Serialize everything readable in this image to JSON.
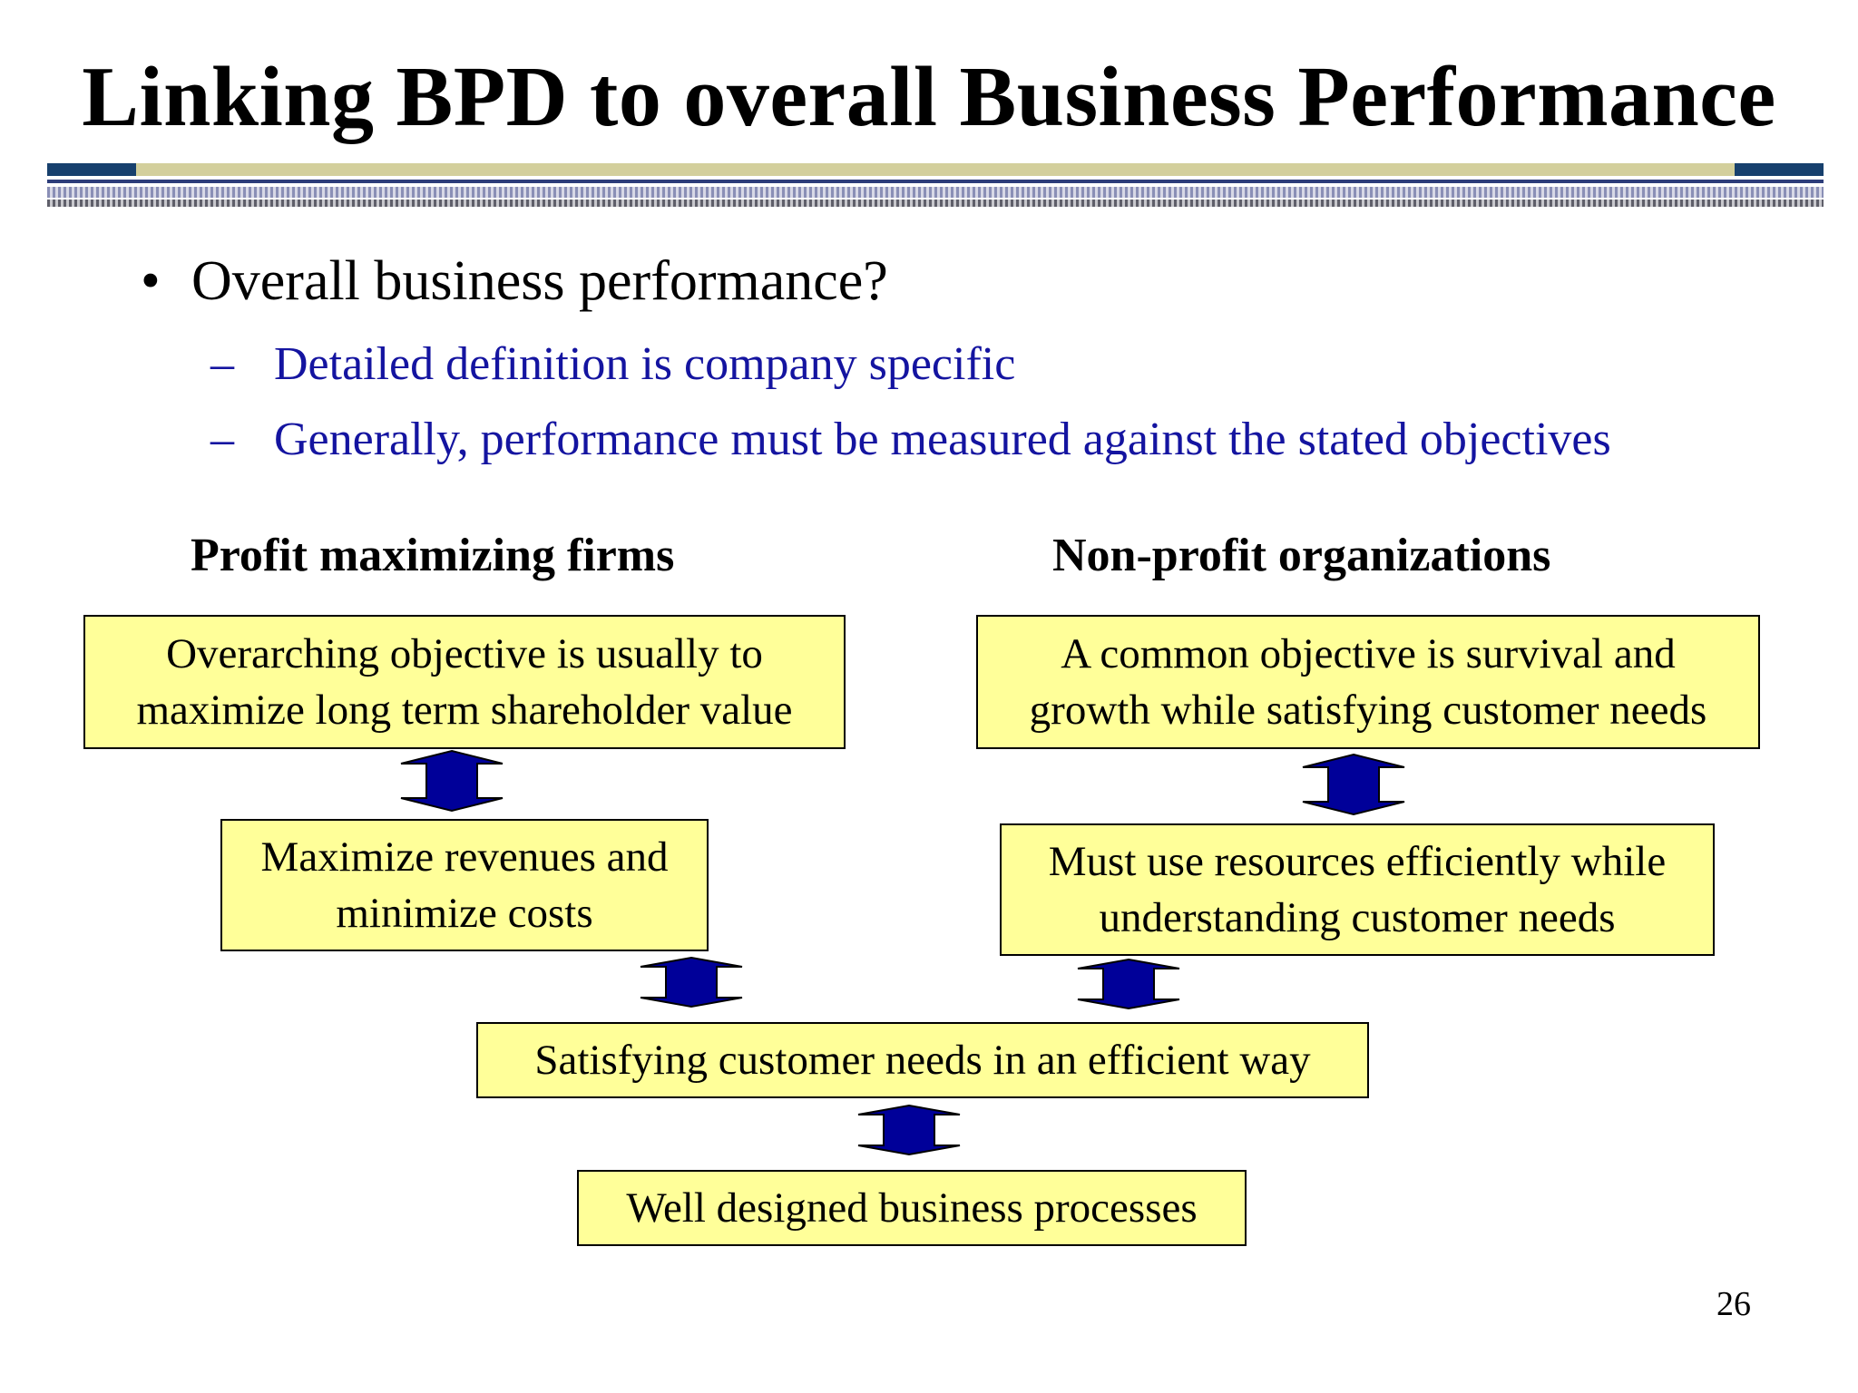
{
  "slide": {
    "title": "Linking BPD to overall Business Performance",
    "bullet": "Overall business performance?",
    "bullet_marker": "•",
    "sub_marker": "–",
    "sub_bullets": [
      "Detailed definition is company specific",
      "Generally, performance must be measured against the stated objectives"
    ],
    "columns": {
      "left_heading": "Profit maximizing firms",
      "right_heading": "Non-profit organizations"
    },
    "boxes": {
      "profit_objective": [
        "Overarching objective is usually to",
        "maximize long term shareholder value"
      ],
      "profit_revenues": [
        "Maximize revenues and",
        "minimize costs"
      ],
      "nonprofit_objective": [
        "A common objective is survival and",
        "growth while satisfying customer needs"
      ],
      "nonprofit_resources": [
        "Must use resources efficiently while",
        "understanding customer needs"
      ],
      "customer_needs": "Satisfying customer needs in an efficient way",
      "processes": "Well designed business processes"
    },
    "page_number": "26",
    "colors": {
      "box_fill": "#ffff99",
      "arrow_fill": "#000099",
      "sub_bullet_text": "#1414a0"
    }
  }
}
